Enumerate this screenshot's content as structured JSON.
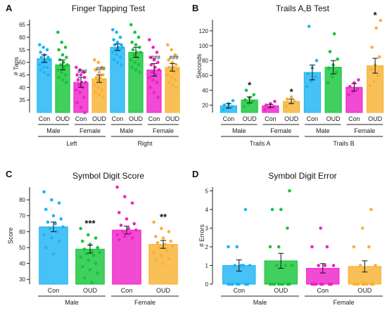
{
  "colors": {
    "cyan": "#1fb4f4",
    "green": "#17c43b",
    "magenta": "#ee22c9",
    "orange": "#f8b233"
  },
  "chart_data": [
    {
      "type": "bar",
      "letter": "A",
      "title": "Finger Tapping Test",
      "ylabel": "# Taps",
      "ylim": [
        30,
        67
      ],
      "yticks": [
        35,
        40,
        45,
        50,
        55,
        60,
        65
      ],
      "categories": [
        "Con",
        "OUD",
        "Con",
        "OUD",
        "Con",
        "OUD",
        "Con",
        "OUD"
      ],
      "colors": [
        "cyan",
        "green",
        "magenta",
        "orange",
        "cyan",
        "green",
        "magenta",
        "orange"
      ],
      "values": [
        51.5,
        49,
        42,
        43.5,
        56,
        54,
        47,
        48
      ],
      "errors": [
        1.5,
        2,
        2,
        1.5,
        1.3,
        2,
        2.5,
        1.5
      ],
      "annotations": [
        "",
        "",
        "###",
        "###",
        "",
        "",
        "###",
        "###"
      ],
      "groups": [
        "Male",
        "Female",
        "Male",
        "Female"
      ],
      "supergroups": [
        "Left",
        "Right"
      ],
      "points": [
        [
          57,
          56,
          55,
          54,
          53,
          52,
          52,
          51,
          51,
          50,
          50,
          49,
          48,
          48,
          47,
          46,
          45
        ],
        [
          62,
          58,
          56,
          55,
          53,
          52,
          51,
          50,
          49,
          49,
          48,
          47,
          46,
          45,
          44,
          43,
          42
        ],
        [
          48,
          47,
          46,
          45,
          45,
          44,
          43,
          42,
          42,
          41,
          40,
          39,
          38,
          36,
          34,
          32,
          30
        ],
        [
          51,
          50,
          48,
          47,
          46,
          45,
          44,
          44,
          43,
          43,
          42,
          41,
          40,
          39,
          38,
          37,
          36
        ],
        [
          63,
          62,
          60,
          59,
          58,
          57,
          57,
          56,
          56,
          55,
          55,
          54,
          53,
          52,
          51,
          50,
          49
        ],
        [
          65,
          62,
          60,
          58,
          57,
          56,
          55,
          54,
          54,
          53,
          52,
          51,
          50,
          49,
          48,
          47,
          46
        ],
        [
          59,
          56,
          54,
          52,
          51,
          50,
          49,
          48,
          47,
          46,
          45,
          44,
          43,
          42,
          40,
          38,
          36
        ],
        [
          57,
          55,
          53,
          51,
          50,
          49,
          48,
          48,
          47,
          47,
          46,
          45,
          44,
          43,
          42,
          41,
          40
        ]
      ]
    },
    {
      "type": "bar",
      "letter": "B",
      "title": "Trails A,B Test",
      "ylabel": "Seconds",
      "ylim": [
        10,
        135
      ],
      "yticks": [
        20,
        40,
        60,
        80,
        100,
        120
      ],
      "categories": [
        "Con",
        "OUD",
        "Con",
        "OUD",
        "Con",
        "OUD",
        "Con",
        "OUD"
      ],
      "colors": [
        "cyan",
        "green",
        "magenta",
        "orange",
        "cyan",
        "green",
        "magenta",
        "orange"
      ],
      "values": [
        19,
        27,
        19,
        25,
        64,
        71,
        44,
        73
      ],
      "errors": [
        3,
        4,
        2,
        3,
        10,
        9,
        5,
        10
      ],
      "annotations": [
        "",
        "*",
        "",
        "*",
        "",
        "",
        "",
        "*"
      ],
      "groups": [
        "Male",
        "Female",
        "Male",
        "Female"
      ],
      "supergroups": [
        "Trails A",
        "Trails B"
      ],
      "points": [
        [
          14,
          16,
          18,
          20,
          22,
          26
        ],
        [
          18,
          22,
          25,
          27,
          30,
          34,
          40
        ],
        [
          14,
          16,
          18,
          20,
          22,
          25
        ],
        [
          18,
          22,
          25,
          28,
          31
        ],
        [
          45,
          52,
          58,
          62,
          70,
          80,
          126
        ],
        [
          50,
          58,
          64,
          70,
          74,
          82,
          92,
          116
        ],
        [
          34,
          38,
          42,
          45,
          50,
          54
        ],
        [
          46,
          52,
          60,
          68,
          74,
          85,
          98,
          124,
          134
        ]
      ]
    },
    {
      "type": "bar",
      "letter": "C",
      "title": "Symbol Digit Score",
      "ylabel": "Score",
      "ylim": [
        27,
        88
      ],
      "yticks": [
        30,
        40,
        50,
        60,
        70,
        80
      ],
      "categories": [
        "Con",
        "OUD",
        "Con",
        "OUD"
      ],
      "colors": [
        "cyan",
        "green",
        "magenta",
        "orange"
      ],
      "values": [
        63,
        49,
        61,
        52
      ],
      "errors": [
        3,
        2.5,
        2.5,
        2.5
      ],
      "annotations": [
        "",
        "***",
        "",
        "**"
      ],
      "groups": [
        "Male",
        "Female"
      ],
      "points": [
        [
          85,
          80,
          78,
          74,
          70,
          68,
          66,
          65,
          63,
          62,
          60,
          58,
          56,
          54,
          50,
          46
        ],
        [
          62,
          58,
          56,
          54,
          52,
          50,
          49,
          48,
          47,
          46,
          45,
          44,
          42,
          40,
          38,
          36,
          34,
          31,
          28
        ],
        [
          88,
          82,
          78,
          72,
          68,
          65,
          64,
          62,
          61,
          60,
          59,
          58,
          57,
          56,
          55
        ],
        [
          66,
          62,
          60,
          57,
          56,
          54,
          53,
          52,
          51,
          50,
          48,
          47,
          45,
          43,
          42,
          40
        ]
      ]
    },
    {
      "type": "bar",
      "letter": "D",
      "title": "Symbol Digit Error",
      "ylabel": "# Errors",
      "ylim": [
        0,
        5.2
      ],
      "yticks": [
        0,
        1,
        2,
        3,
        4,
        5
      ],
      "categories": [
        "Con",
        "OUD",
        "Con",
        "OUD"
      ],
      "colors": [
        "cyan",
        "green",
        "magenta",
        "orange"
      ],
      "values": [
        1.0,
        1.25,
        0.85,
        0.95
      ],
      "errors": [
        0.3,
        0.4,
        0.25,
        0.3
      ],
      "annotations": [
        "",
        "",
        "",
        ""
      ],
      "groups": [
        "Male",
        "Female"
      ],
      "points": [
        [
          0,
          0,
          0,
          0,
          0,
          0,
          0,
          1,
          1,
          1,
          1,
          2,
          2,
          4
        ],
        [
          0,
          0,
          0,
          0,
          0,
          0,
          0,
          0,
          1,
          1,
          1,
          2,
          2,
          3,
          4,
          4,
          5
        ],
        [
          0,
          0,
          0,
          0,
          0,
          0,
          0,
          1,
          1,
          1,
          2,
          2,
          3
        ],
        [
          0,
          0,
          0,
          0,
          0,
          0,
          0,
          0,
          1,
          1,
          2,
          2,
          3,
          4
        ]
      ]
    }
  ]
}
